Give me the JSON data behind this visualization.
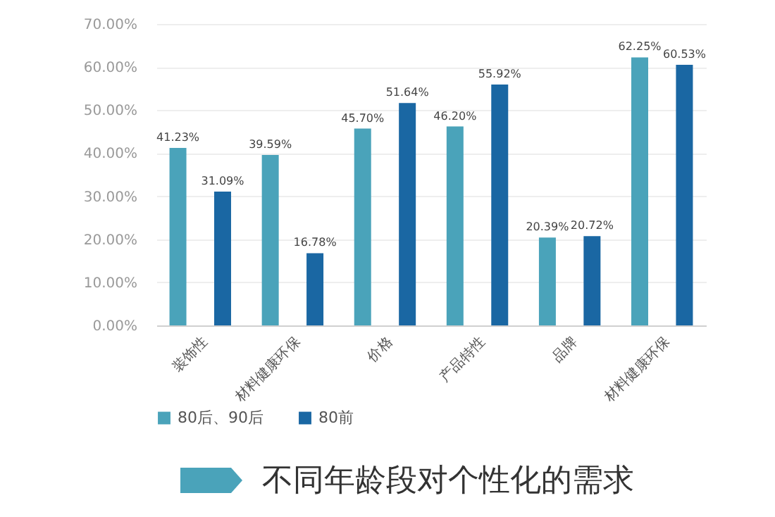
{
  "chart_data": {
    "type": "bar",
    "title": "不同年龄段对个性化的需求",
    "categories": [
      "装饰性",
      "材料健康环保",
      "价格",
      "产品特性",
      "品牌",
      "材料健康环保"
    ],
    "series": [
      {
        "name": "80后、90后",
        "color": "#4aa3ba",
        "values": [
          41.23,
          39.59,
          45.7,
          46.2,
          20.39,
          62.25
        ],
        "value_labels": [
          "41.23%",
          "39.59%",
          "45.70%",
          "46.20%",
          "20.39%",
          "62.25%"
        ]
      },
      {
        "name": "80前",
        "color": "#1a67a3",
        "values": [
          31.09,
          16.78,
          51.64,
          55.92,
          20.72,
          60.53
        ],
        "value_labels": [
          "31.09%",
          "16.78%",
          "51.64%",
          "55.92%",
          "20.72%",
          "60.53%"
        ]
      }
    ],
    "ylim": [
      0,
      70
    ],
    "yticks": [
      {
        "value": 0,
        "label": "0.00%"
      },
      {
        "value": 10,
        "label": "10.00%"
      },
      {
        "value": 20,
        "label": "20.00%"
      },
      {
        "value": 30,
        "label": "30.00%"
      },
      {
        "value": 40,
        "label": "40.00%"
      },
      {
        "value": 50,
        "label": "50.00%"
      },
      {
        "value": 60,
        "label": "60.00%"
      },
      {
        "value": 70,
        "label": "70.00%"
      }
    ],
    "grid": "y",
    "legend": "bottom"
  }
}
